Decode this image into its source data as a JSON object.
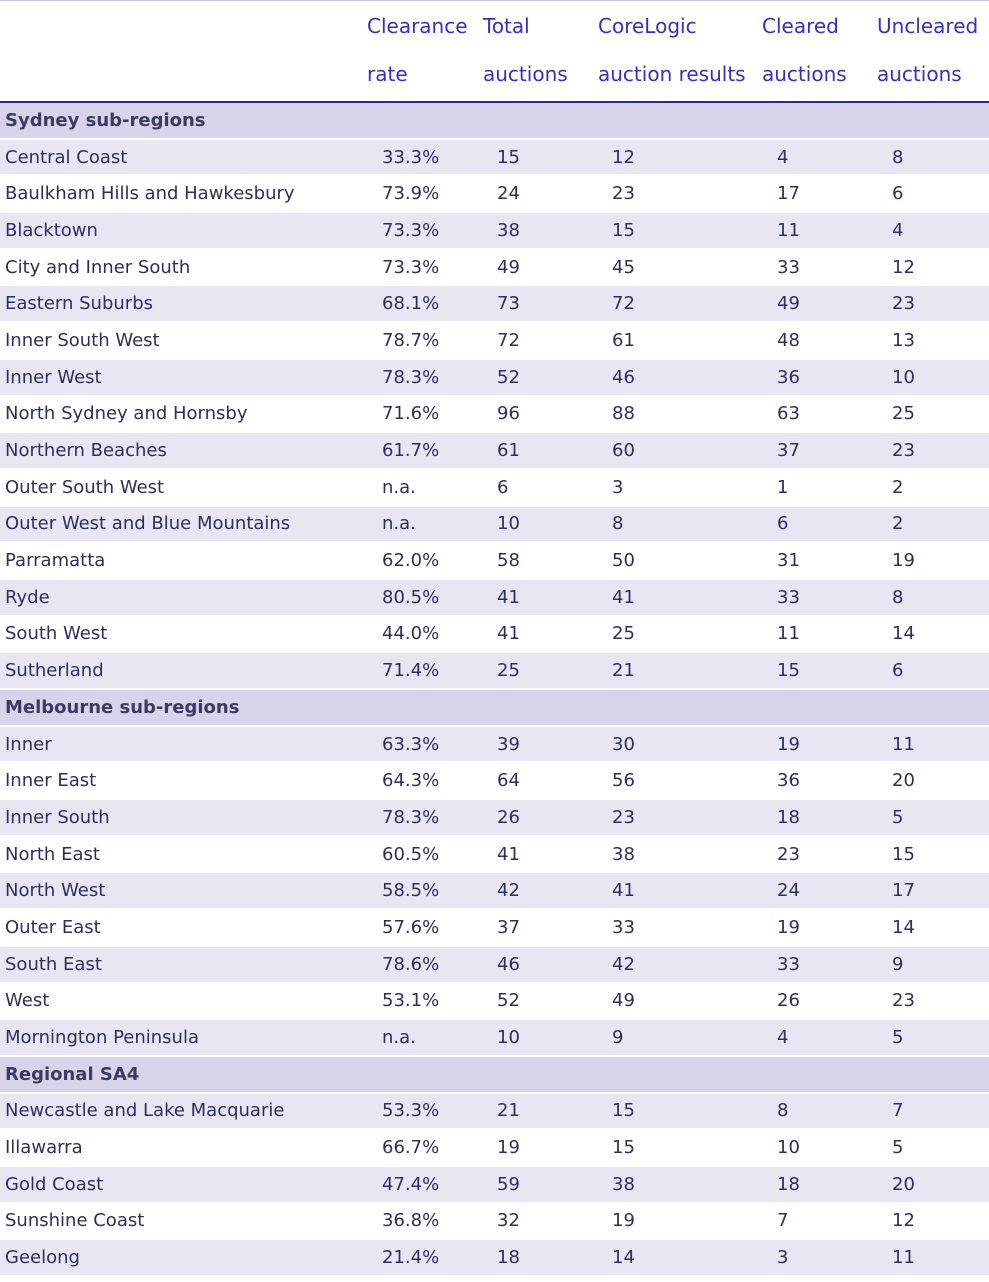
{
  "headers": {
    "clearance_rate": [
      "Clearance",
      "rate"
    ],
    "total_auctions": [
      "Total",
      "auctions"
    ],
    "corelogic_results": [
      "CoreLogic",
      "auction results"
    ],
    "cleared": [
      "Cleared",
      "auctions"
    ],
    "uncleared": [
      "Uncleared",
      "auctions"
    ]
  },
  "sections": [
    {
      "title": "Sydney sub-regions",
      "rows": [
        [
          "Central Coast",
          "33.3%",
          "15",
          "12",
          "4",
          "8"
        ],
        [
          "Baulkham Hills and Hawkesbury",
          "73.9%",
          "24",
          "23",
          "17",
          "6"
        ],
        [
          "Blacktown",
          "73.3%",
          "38",
          "15",
          "11",
          "4"
        ],
        [
          "City and Inner South",
          "73.3%",
          "49",
          "45",
          "33",
          "12"
        ],
        [
          "Eastern Suburbs",
          "68.1%",
          "73",
          "72",
          "49",
          "23"
        ],
        [
          "Inner South West",
          "78.7%",
          "72",
          "61",
          "48",
          "13"
        ],
        [
          "Inner West",
          "78.3%",
          "52",
          "46",
          "36",
          "10"
        ],
        [
          "North Sydney and Hornsby",
          "71.6%",
          "96",
          "88",
          "63",
          "25"
        ],
        [
          "Northern Beaches",
          "61.7%",
          "61",
          "60",
          "37",
          "23"
        ],
        [
          "Outer South West",
          "n.a.",
          "6",
          "3",
          "1",
          "2"
        ],
        [
          "Outer West and Blue Mountains",
          "n.a.",
          "10",
          "8",
          "6",
          "2"
        ],
        [
          "Parramatta",
          "62.0%",
          "58",
          "50",
          "31",
          "19"
        ],
        [
          "Ryde",
          "80.5%",
          "41",
          "41",
          "33",
          "8"
        ],
        [
          "South West",
          "44.0%",
          "41",
          "25",
          "11",
          "14"
        ],
        [
          "Sutherland",
          "71.4%",
          "25",
          "21",
          "15",
          "6"
        ]
      ]
    },
    {
      "title": "Melbourne sub-regions",
      "rows": [
        [
          "Inner",
          "63.3%",
          "39",
          "30",
          "19",
          "11"
        ],
        [
          "Inner East",
          "64.3%",
          "64",
          "56",
          "36",
          "20"
        ],
        [
          "Inner South",
          "78.3%",
          "26",
          "23",
          "18",
          "5"
        ],
        [
          "North East",
          "60.5%",
          "41",
          "38",
          "23",
          "15"
        ],
        [
          "North West",
          "58.5%",
          "42",
          "41",
          "24",
          "17"
        ],
        [
          "Outer East",
          "57.6%",
          "37",
          "33",
          "19",
          "14"
        ],
        [
          "South East",
          "78.6%",
          "46",
          "42",
          "33",
          "9"
        ],
        [
          "West",
          "53.1%",
          "52",
          "49",
          "26",
          "23"
        ],
        [
          "Mornington Peninsula",
          "n.a.",
          "10",
          "9",
          "4",
          "5"
        ]
      ]
    },
    {
      "title": "Regional SA4",
      "rows": [
        [
          "Newcastle and Lake Macquarie",
          "53.3%",
          "21",
          "15",
          "8",
          "7"
        ],
        [
          "Illawarra",
          "66.7%",
          "19",
          "15",
          "10",
          "5"
        ],
        [
          "Gold Coast",
          "47.4%",
          "59",
          "38",
          "18",
          "20"
        ],
        [
          "Sunshine Coast",
          "36.8%",
          "32",
          "19",
          "7",
          "12"
        ],
        [
          "Geelong",
          "21.4%",
          "18",
          "14",
          "3",
          "11"
        ]
      ]
    }
  ]
}
